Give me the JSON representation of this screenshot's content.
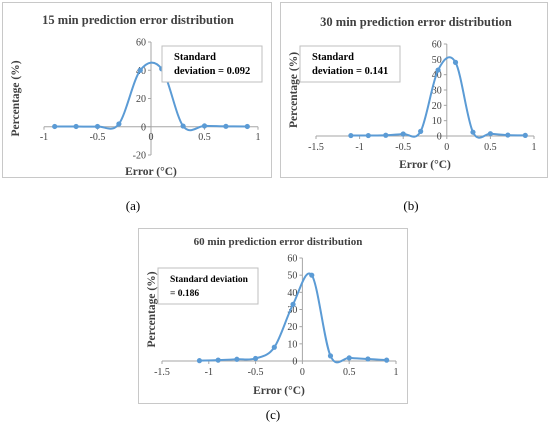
{
  "colors": {
    "series": "#5b9bd5",
    "axis": "#a6a6a6",
    "frame": "#c8c8c8",
    "text": "#404040",
    "title": "#404040"
  },
  "chart_data": [
    {
      "type": "line",
      "title": "15 min prediction error distribution",
      "xlabel": "Error (°C)",
      "ylabel": "Percentage (%)",
      "xlim": [
        -1,
        1
      ],
      "ylim": [
        -20,
        60
      ],
      "xticks": [
        "-1",
        "-0.5",
        "0",
        "0.5",
        "1"
      ],
      "yticks": [
        "-20",
        "0",
        "20",
        "40",
        "60"
      ],
      "annotation": [
        "Standard",
        "deviation = 0.092"
      ],
      "subcaption": "(a)",
      "grid": false,
      "series": [
        {
          "x": [
            -0.9,
            -0.7,
            -0.5,
            -0.3,
            -0.1,
            0.1,
            0.3,
            0.5,
            0.7,
            0.9
          ],
          "y": [
            0.2,
            0.2,
            0.2,
            2,
            40,
            41,
            0.5,
            0.6,
            0.3,
            0.2
          ]
        }
      ]
    },
    {
      "type": "line",
      "title": "30 min prediction error distribution",
      "xlabel": "Error (°C)",
      "ylabel": "Percentage (%)",
      "xlim": [
        -1.5,
        1
      ],
      "ylim": [
        0,
        60
      ],
      "xticks": [
        "-1.5",
        "-1",
        "-0.5",
        "0",
        "0.5",
        "1"
      ],
      "yticks": [
        "0",
        "10",
        "20",
        "30",
        "40",
        "50",
        "60"
      ],
      "annotation": [
        "Standard",
        "deviation = 0.141"
      ],
      "subcaption": "(b)",
      "grid": false,
      "series": [
        {
          "x": [
            -1.1,
            -0.9,
            -0.7,
            -0.5,
            -0.3,
            -0.1,
            0.1,
            0.3,
            0.5,
            0.7,
            0.9
          ],
          "y": [
            0.3,
            0.3,
            0.5,
            1.3,
            3,
            43,
            48,
            2.5,
            1.5,
            0.6,
            0.4
          ]
        }
      ]
    },
    {
      "type": "line",
      "title": "60 min prediction error distribution",
      "xlabel": "Error (°C)",
      "ylabel": "Percentage (%)",
      "xlim": [
        -1.5,
        1
      ],
      "ylim": [
        0,
        60
      ],
      "xticks": [
        "-1.5",
        "-1",
        "-0.5",
        "0",
        "0.5",
        "1"
      ],
      "yticks": [
        "0",
        "10",
        "20",
        "30",
        "40",
        "50",
        "60"
      ],
      "annotation": [
        "Standard deviation",
        "= 0.186"
      ],
      "subcaption": "(c)",
      "grid": false,
      "series": [
        {
          "x": [
            -1.1,
            -0.9,
            -0.7,
            -0.5,
            -0.3,
            -0.1,
            0.1,
            0.3,
            0.5,
            0.7,
            0.9
          ],
          "y": [
            0.2,
            0.5,
            1,
            1.5,
            8,
            33,
            50,
            3,
            1.8,
            1.2,
            0.5
          ]
        }
      ]
    }
  ]
}
